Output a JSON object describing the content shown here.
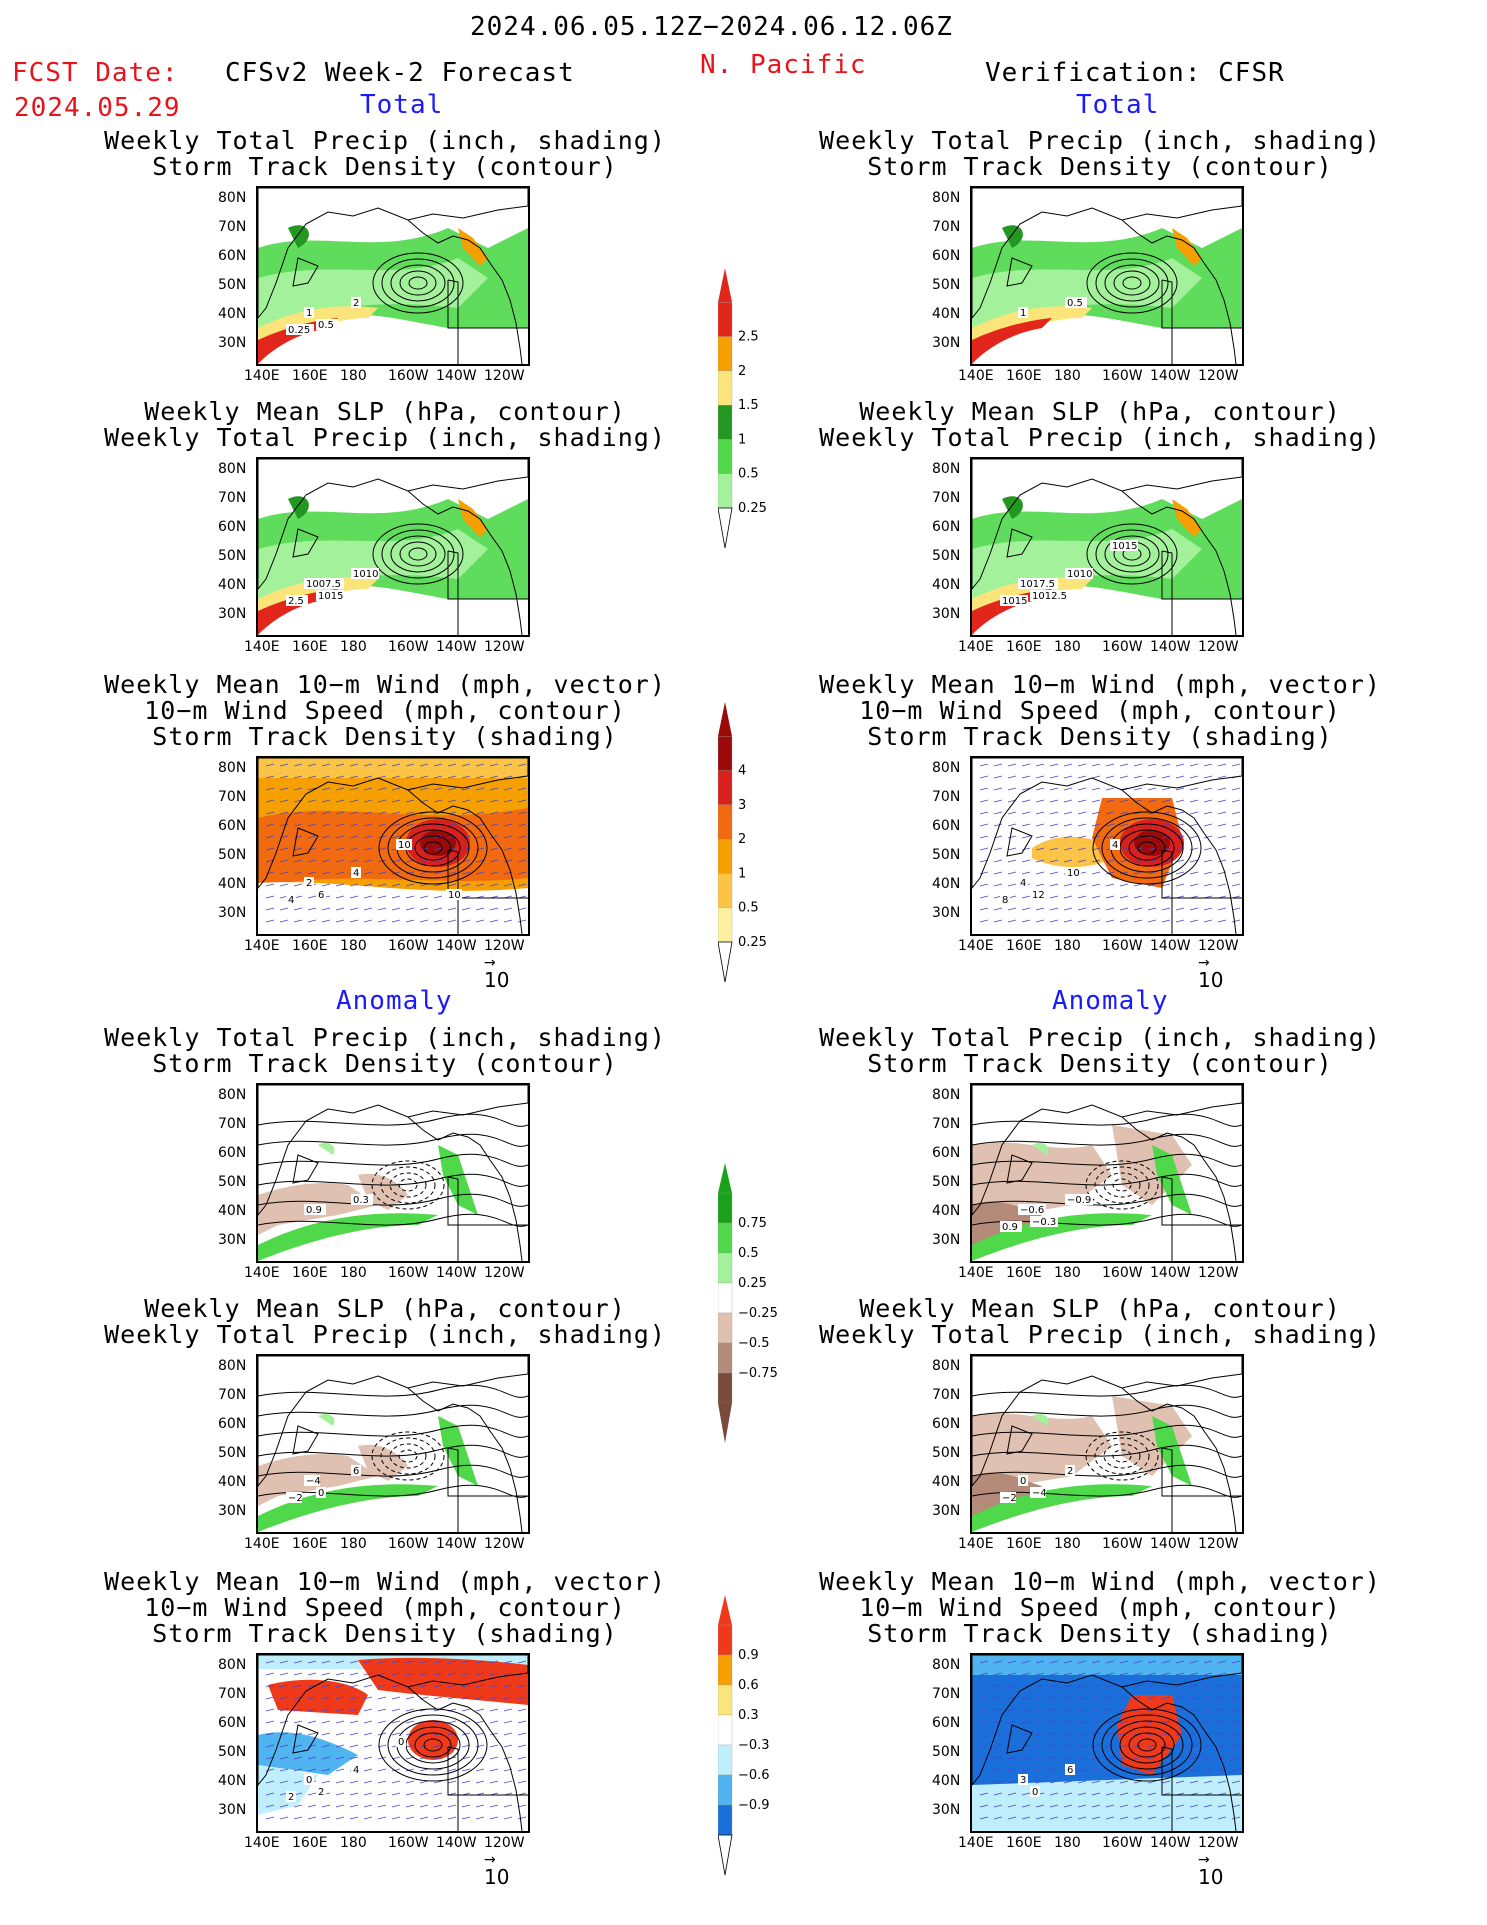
{
  "header": {
    "period": "2024.06.05.12Z−2024.06.12.06Z",
    "fcst_label": "FCST Date:",
    "fcst_date": "2024.05.29",
    "model": "CFSv2 Week-2 Forecast",
    "region": "N. Pacific",
    "verification": "Verification: CFSR"
  },
  "sections": {
    "total": "Total",
    "anomaly": "Anomaly"
  },
  "panel_titles": {
    "precip_storm": "Weekly Total Precip (inch, shading)\nStorm Track Density (contour)",
    "slp_precip": "Weekly Mean SLP (hPa, contour)\nWeekly Total Precip (inch, shading)",
    "wind": "Weekly Mean 10−m Wind (mph, vector)\n10−m Wind Speed (mph, contour)\nStorm Track Density (shading)"
  },
  "lat_labels": [
    "80N",
    "70N",
    "60N",
    "50N",
    "40N",
    "30N"
  ],
  "lon_labels": [
    "140E",
    "160E",
    "180",
    "160W",
    "140W",
    "120W"
  ],
  "vector_ref": "10",
  "colorbars": {
    "precip": {
      "labels": [
        "2.5",
        "2",
        "1.5",
        "1",
        "0.5",
        "0.25"
      ],
      "colors": [
        "#e3261b",
        "#f5a000",
        "#fbe57a",
        "#229722",
        "#4fd84a",
        "#a4f19b"
      ]
    },
    "storm_total": {
      "labels": [
        "4",
        "3",
        "2",
        "1",
        "0.5",
        "0.25"
      ],
      "colors": [
        "#9a0a0a",
        "#d8201c",
        "#f26a10",
        "#f5a000",
        "#fbc447",
        "#fdf0a0"
      ]
    },
    "precip_anom": {
      "labels": [
        "0.75",
        "0.5",
        "0.25",
        "−0.25",
        "−0.5",
        "−0.75"
      ],
      "colors": [
        "#19a219",
        "#4fd84a",
        "#a4f19b",
        "#ffffff",
        "#e0c0b0",
        "#b48a78",
        "#7a4a3c"
      ]
    },
    "storm_anom": {
      "labels": [
        "0.9",
        "0.6",
        "0.3",
        "−0.3",
        "−0.6",
        "−0.9"
      ],
      "colors": [
        "#ee3a1a",
        "#f5a000",
        "#fbe57a",
        "#ffffff",
        "#bfeefc",
        "#4fb4f0",
        "#1a6fdb"
      ]
    }
  },
  "contour_labels": {
    "fc_precip_total": [
      "1",
      "2",
      "0.5",
      "0.25"
    ],
    "obs_precip_total": [
      "1",
      "0.5"
    ],
    "fc_slp_total": [
      "1007.5",
      "1010",
      "1015",
      "2.5"
    ],
    "obs_slp_total": [
      "1017.5",
      "1010",
      "1012.5",
      "1015",
      "1015"
    ],
    "fc_wind_total": [
      "2",
      "4",
      "6",
      "4",
      "10",
      "10"
    ],
    "obs_wind_total": [
      "4",
      "10",
      "12",
      "8",
      "4"
    ],
    "fc_precip_anom": [
      "0.9",
      "0.3"
    ],
    "obs_precip_anom": [
      "−0.6",
      "−0.9",
      "−0.3",
      "0.9"
    ],
    "fc_slp_anom": [
      "−4",
      "6",
      "0",
      "−2"
    ],
    "obs_slp_anom": [
      "0",
      "2",
      "−4",
      "−2"
    ],
    "fc_wind_anom": [
      "0",
      "4",
      "2",
      "2",
      "0"
    ],
    "obs_wind_anom": [
      "3",
      "6",
      "0"
    ]
  },
  "colors": {
    "header_red": "#e8141c",
    "section_blue": "#1a1aff"
  }
}
